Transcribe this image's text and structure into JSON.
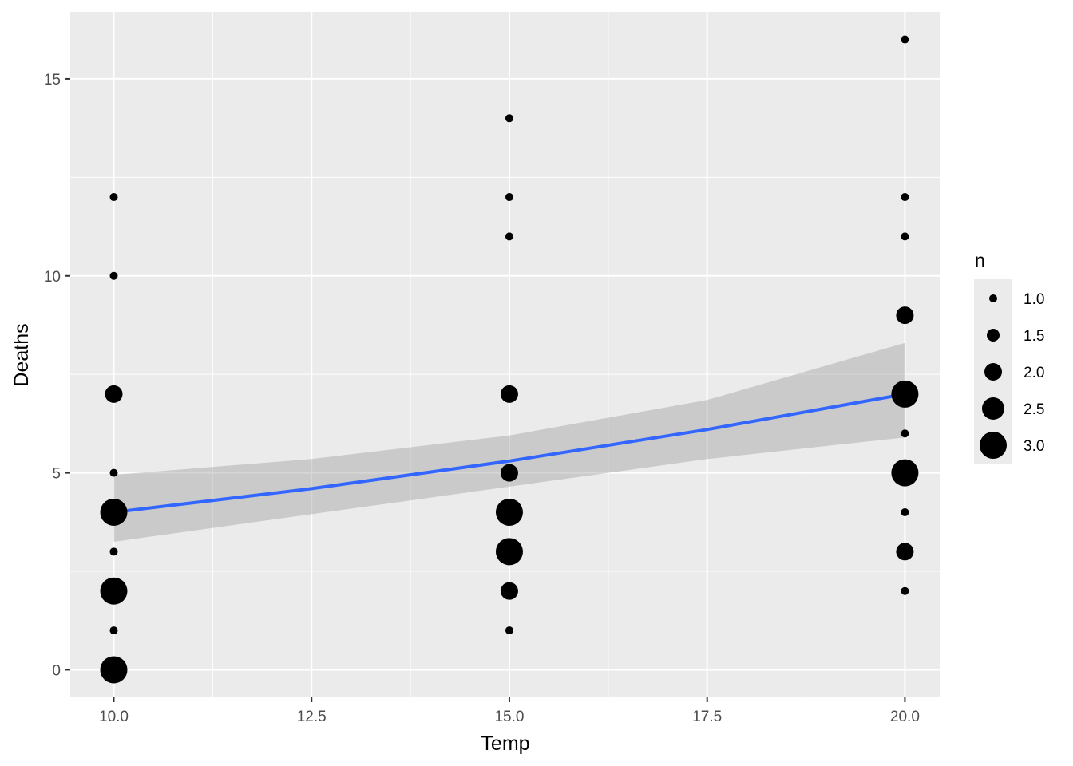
{
  "chart_data": {
    "type": "scatter",
    "xlabel": "Temp",
    "ylabel": "Deaths",
    "xlim": [
      9.45,
      20.45
    ],
    "ylim": [
      -0.7,
      16.7
    ],
    "x_ticks": [
      10.0,
      12.5,
      15.0,
      17.5,
      20.0
    ],
    "x_tick_labels": [
      "10.0",
      "12.5",
      "15.0",
      "17.5",
      "20.0"
    ],
    "y_ticks": [
      0,
      5,
      10,
      15
    ],
    "y_tick_labels": [
      "0",
      "5",
      "10",
      "15"
    ],
    "grid": true,
    "points": [
      {
        "x": 10,
        "y": 0,
        "n": 3
      },
      {
        "x": 10,
        "y": 1,
        "n": 1
      },
      {
        "x": 10,
        "y": 2,
        "n": 3
      },
      {
        "x": 10,
        "y": 3,
        "n": 1
      },
      {
        "x": 10,
        "y": 4,
        "n": 3
      },
      {
        "x": 10,
        "y": 5,
        "n": 1
      },
      {
        "x": 10,
        "y": 7,
        "n": 2
      },
      {
        "x": 10,
        "y": 10,
        "n": 1
      },
      {
        "x": 10,
        "y": 12,
        "n": 1
      },
      {
        "x": 15,
        "y": 1,
        "n": 1
      },
      {
        "x": 15,
        "y": 2,
        "n": 2
      },
      {
        "x": 15,
        "y": 3,
        "n": 3
      },
      {
        "x": 15,
        "y": 4,
        "n": 3
      },
      {
        "x": 15,
        "y": 5,
        "n": 2
      },
      {
        "x": 15,
        "y": 7,
        "n": 2
      },
      {
        "x": 15,
        "y": 11,
        "n": 1
      },
      {
        "x": 15,
        "y": 12,
        "n": 1
      },
      {
        "x": 15,
        "y": 14,
        "n": 1
      },
      {
        "x": 20,
        "y": 2,
        "n": 1
      },
      {
        "x": 20,
        "y": 3,
        "n": 2
      },
      {
        "x": 20,
        "y": 4,
        "n": 1
      },
      {
        "x": 20,
        "y": 5,
        "n": 3
      },
      {
        "x": 20,
        "y": 6,
        "n": 1
      },
      {
        "x": 20,
        "y": 7,
        "n": 3
      },
      {
        "x": 20,
        "y": 9,
        "n": 2
      },
      {
        "x": 20,
        "y": 11,
        "n": 1
      },
      {
        "x": 20,
        "y": 12,
        "n": 1
      },
      {
        "x": 20,
        "y": 16,
        "n": 1
      }
    ],
    "fit_line": {
      "color": "#3366ff",
      "x": [
        10,
        12.5,
        15,
        17.5,
        20
      ],
      "y": [
        4.0,
        4.6,
        5.3,
        6.1,
        7.0
      ]
    },
    "confidence_band": {
      "color": "#999999",
      "x": [
        10,
        12.5,
        15,
        17.5,
        20
      ],
      "lower": [
        3.25,
        3.95,
        4.65,
        5.35,
        5.9
      ],
      "upper": [
        4.95,
        5.35,
        5.95,
        6.85,
        8.3
      ]
    },
    "legend": {
      "title": "n",
      "position": "right",
      "items": [
        {
          "value": 1.0,
          "label": "1.0"
        },
        {
          "value": 1.5,
          "label": "1.5"
        },
        {
          "value": 2.0,
          "label": "2.0"
        },
        {
          "value": 2.5,
          "label": "2.5"
        },
        {
          "value": 3.0,
          "label": "3.0"
        }
      ]
    },
    "colors": {
      "panel_background": "#ebebeb",
      "grid_line": "#ffffff",
      "point": "#000000",
      "tick_text": "#4d4d4d"
    }
  }
}
